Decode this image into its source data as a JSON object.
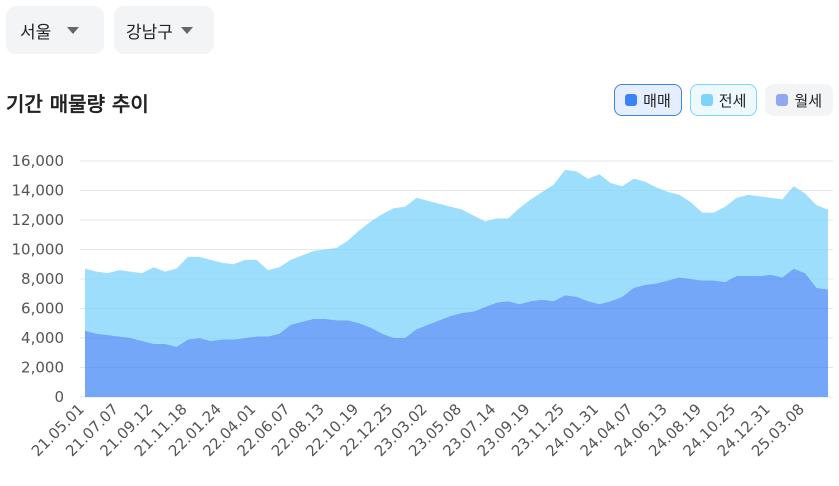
{
  "filters": [
    {
      "label": "서울"
    },
    {
      "label": "강남구"
    }
  ],
  "chart_data": {
    "type": "stacked_area",
    "title": "기간 매물량 추이",
    "categories": [
      "21.05.01",
      null,
      null,
      "21.07.07",
      null,
      null,
      "21.09.12",
      null,
      null,
      "21.11.18",
      null,
      null,
      "22.01.24",
      null,
      null,
      "22.04.01",
      null,
      null,
      "22.06.07",
      null,
      null,
      "22.08.13",
      null,
      null,
      "22.10.19",
      null,
      null,
      "22.12.25",
      null,
      null,
      "23.03.02",
      null,
      null,
      "23.05.08",
      null,
      null,
      "23.07.14",
      null,
      null,
      "23.09.19",
      null,
      null,
      "23.11.25",
      null,
      null,
      "24.01.31",
      null,
      null,
      "24.04.07",
      null,
      null,
      "24.06.13",
      null,
      null,
      "24.08.19",
      null,
      null,
      "24.10.25",
      null,
      null,
      "24.12.31",
      null,
      null,
      "25.03.08",
      null,
      null
    ],
    "series": [
      {
        "name": "매매",
        "color": "#3b82f6",
        "selected": true,
        "values": [
          4500,
          4300,
          4200,
          4100,
          4000,
          3800,
          3600,
          3600,
          3400,
          3900,
          4000,
          3800,
          3900,
          3900,
          4000,
          4100,
          4100,
          4300,
          4900,
          5100,
          5300,
          5300,
          5200,
          5200,
          5000,
          4700,
          4300,
          4000,
          4000,
          4600,
          4900,
          5200,
          5500,
          5700,
          5800,
          6100,
          6400,
          6500,
          6300,
          6500,
          6600,
          6500,
          6900,
          6800,
          6500,
          6300,
          6500,
          6800,
          7400,
          7600,
          7700,
          7900,
          8100,
          8000,
          7900,
          7900,
          7800,
          8200,
          8200,
          8200,
          8300,
          8100,
          8700,
          8400,
          7400,
          7300
        ]
      },
      {
        "name": "전세",
        "color": "#7dd3fc",
        "selected": true,
        "values": [
          4200,
          4200,
          4200,
          4500,
          4500,
          4600,
          5200,
          4900,
          5300,
          5600,
          5500,
          5500,
          5200,
          5100,
          5300,
          5200,
          4500,
          4500,
          4400,
          4500,
          4600,
          4700,
          4900,
          5400,
          6300,
          7200,
          8100,
          8800,
          8900,
          8900,
          8400,
          7900,
          7400,
          7000,
          6500,
          5800,
          5700,
          5600,
          6500,
          6900,
          7300,
          7900,
          8500,
          8500,
          8300,
          8800,
          8000,
          7500,
          7400,
          7000,
          6500,
          6000,
          5600,
          5200,
          4600,
          4600,
          5100,
          5300,
          5500,
          5400,
          5200,
          5300,
          5600,
          5400,
          5600,
          5400
        ]
      },
      {
        "name": "월세",
        "color": "#8fa8f0",
        "selected": false
      }
    ],
    "ylim": [
      0,
      16000
    ],
    "yticks": [
      0,
      {
        "value": 2000,
        "label": "2,000"
      },
      {
        "value": 4000,
        "label": "4,000"
      },
      {
        "value": 6000,
        "label": "6,000"
      },
      {
        "value": 8000,
        "label": "8,000"
      },
      {
        "value": 10000,
        "label": "10,000"
      },
      {
        "value": 12000,
        "label": "12,000"
      },
      {
        "value": 14000,
        "label": "14,000"
      },
      {
        "value": 16000,
        "label": "16,000"
      }
    ],
    "grid": true
  }
}
